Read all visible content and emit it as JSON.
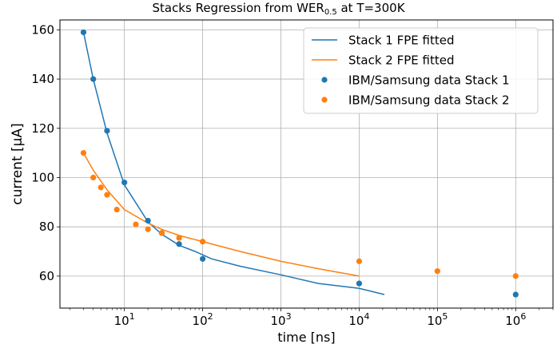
{
  "chart_data": {
    "type": "line",
    "title": {
      "main": "Stacks Regression from WER",
      "sub": "0.5",
      "tail": " at T=300K"
    },
    "xlabel": "time [ns]",
    "ylabel": "current [μA]",
    "xscale": "log",
    "xlim": [
      1.5,
      3000000
    ],
    "ylim": [
      47,
      164
    ],
    "grid": true,
    "legend_position": "top-right",
    "x_ticks": [
      {
        "value": 10,
        "base": "10",
        "exp": "1"
      },
      {
        "value": 100,
        "base": "10",
        "exp": "2"
      },
      {
        "value": 1000,
        "base": "10",
        "exp": "3"
      },
      {
        "value": 10000,
        "base": "10",
        "exp": "4"
      },
      {
        "value": 100000,
        "base": "10",
        "exp": "5"
      },
      {
        "value": 1000000,
        "base": "10",
        "exp": "6"
      }
    ],
    "y_ticks": [
      "60",
      "80",
      "100",
      "120",
      "140",
      "160"
    ],
    "series": [
      {
        "name": "Stack 1 FPE fitted",
        "kind": "line",
        "color": "#1f77b4",
        "x": [
          3,
          4,
          6,
          10,
          20,
          30,
          50,
          80,
          130,
          300,
          1000,
          3000,
          10000,
          21000
        ],
        "y": [
          159,
          140,
          118,
          97,
          82,
          77,
          72.5,
          70,
          67,
          64,
          60.5,
          57,
          55,
          52.5
        ]
      },
      {
        "name": "Stack 2 FPE fitted",
        "kind": "line",
        "color": "#ff7f0e",
        "x": [
          3,
          4,
          6,
          10,
          20,
          30,
          50,
          100,
          300,
          1000,
          3000,
          10000
        ],
        "y": [
          110,
          103,
          95,
          87,
          81.5,
          79,
          76.5,
          74,
          70,
          66,
          63,
          60
        ]
      },
      {
        "name": "IBM/Samsung data Stack 1",
        "kind": "scatter",
        "color": "#1f77b4",
        "x": [
          3,
          4,
          6,
          10,
          20,
          30,
          50,
          100,
          10000,
          1000000
        ],
        "y": [
          159,
          140,
          119,
          98,
          82.5,
          77.5,
          73,
          67,
          57,
          52.5
        ]
      },
      {
        "name": "IBM/Samsung data Stack 2",
        "kind": "scatter",
        "color": "#ff7f0e",
        "x": [
          3,
          4,
          5,
          6,
          8,
          14,
          20,
          30,
          50,
          100,
          10000,
          100000,
          1000000
        ],
        "y": [
          110,
          100,
          96,
          93,
          87,
          81,
          79,
          77.5,
          75.5,
          74,
          66,
          62,
          60
        ]
      }
    ]
  }
}
